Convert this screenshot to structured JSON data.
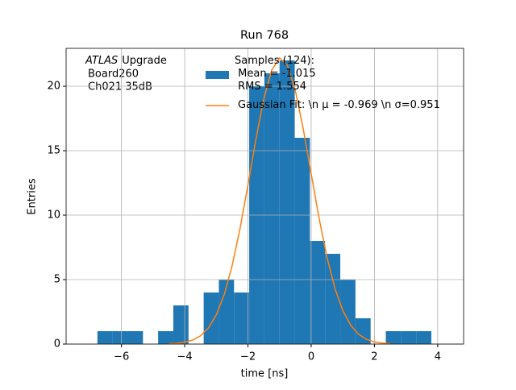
{
  "chart_data": {
    "type": "histogram",
    "title": "Run 768",
    "xlabel": "time [ns]",
    "ylabel": "Entries",
    "annotation": {
      "emphasis": "ATLAS",
      "text": "Upgrade",
      "lines": [
        "Board260",
        "Ch021 35dB"
      ]
    },
    "name": "Samples (124):\n Mean = -1.015\n RMS = 1.554",
    "color": "#1f77b4",
    "bins": [
      -6.76,
      -6.28,
      -5.8,
      -5.32,
      -4.84,
      -4.36,
      -3.88,
      -3.4,
      -2.92,
      -2.44,
      -1.96,
      -1.48,
      -1.0,
      -0.52,
      -0.04,
      0.44,
      0.92,
      1.4,
      1.88,
      2.36,
      2.84,
      3.32,
      3.8
    ],
    "values": [
      1,
      1,
      1,
      0,
      1,
      3,
      0,
      4,
      5,
      4,
      20,
      21,
      22,
      16,
      8,
      7,
      5,
      2,
      0,
      1,
      1,
      1
    ],
    "fit": {
      "type": "line",
      "name": "Gaussian Fit: \\n μ = -0.969 \\n σ=0.951",
      "color": "#ff7f0e",
      "x": [
        -4.5,
        -4.25,
        -4.0,
        -3.75,
        -3.5,
        -3.25,
        -3.0,
        -2.75,
        -2.5,
        -2.25,
        -2.0,
        -1.75,
        -1.5,
        -1.25,
        -1.0,
        -0.75,
        -0.5,
        -0.25,
        0,
        0.25,
        0.5,
        0.75,
        1.0,
        1.25,
        1.5,
        1.75,
        2.0,
        2.25,
        2.5
      ],
      "y": [
        0.02,
        0.06,
        0.14,
        0.31,
        0.64,
        1.25,
        2.27,
        3.84,
        6.08,
        8.96,
        12.33,
        15.85,
        19.0,
        21.25,
        22.19,
        21.62,
        19.66,
        16.68,
        13.21,
        9.76,
        6.73,
        4.33,
        2.6,
        1.46,
        0.76,
        0.37,
        0.17,
        0.07,
        0.03
      ]
    },
    "xlim": [
      -7.75,
      4.82
    ],
    "ylim": [
      0,
      22.94
    ],
    "xticks": [
      {
        "value": -6,
        "label": "−6"
      },
      {
        "value": -4,
        "label": "−4"
      },
      {
        "value": -2,
        "label": "−2"
      },
      0,
      2,
      4
    ],
    "yticks": [
      0,
      5,
      10,
      15,
      20
    ],
    "grid": true
  }
}
